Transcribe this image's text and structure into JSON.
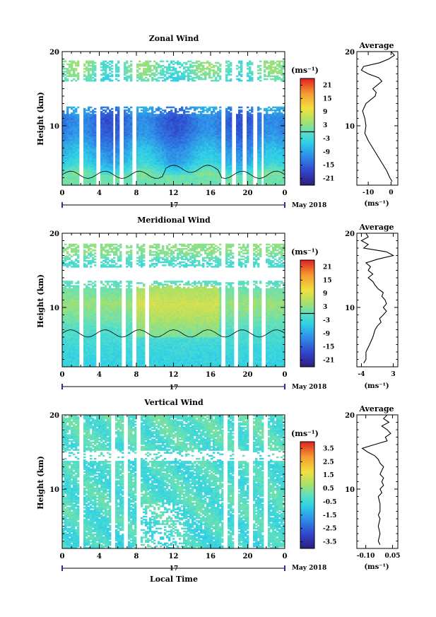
{
  "chart_data": [
    {
      "type": "heatmap",
      "title": "Zonal Wind",
      "ylabel": "Height (km)",
      "ylim": [
        2,
        20
      ],
      "yticks": [
        "10",
        "20"
      ],
      "xticks": [
        "0",
        "4",
        "8",
        "12",
        "16",
        "20",
        "0"
      ],
      "xlim": [
        0,
        24
      ],
      "day_label": "17",
      "date_label": "May 2018",
      "colorbar": {
        "unit_label": "(ms⁻¹)",
        "ticks": [
          "21",
          "15",
          "9",
          "3",
          "-3",
          "-9",
          "-15",
          "-21"
        ],
        "range": [
          -24,
          24
        ],
        "zero_line": true
      },
      "gaps_hours": [
        2.0,
        3.8,
        5.6,
        6.4,
        7.8,
        17.3,
        18.6,
        19.6,
        20.8,
        21.6
      ],
      "field": {
        "type": "zonal",
        "layers": [
          {
            "h": 3.0,
            "v": 2.0
          },
          {
            "h": 5.0,
            "v": -6.0
          },
          {
            "h": 7.0,
            "v": -9.0
          },
          {
            "h": 9.0,
            "v": -13.0
          },
          {
            "h": 11.0,
            "v": -14.0
          },
          {
            "h": 12.5,
            "v": -10.0
          },
          {
            "h": 14.0,
            "v": -4.0
          },
          {
            "h": 16.0,
            "v": -2.0
          },
          {
            "h": 17.5,
            "v": 1.0
          }
        ],
        "coverage_top_km": 12.5,
        "upper_band_km": [
          16.0,
          18.8
        ]
      },
      "profile": {
        "title": "Average",
        "xlabel": "(ms⁻¹)",
        "xticks": [
          "-10",
          "0"
        ],
        "xlim": [
          -15,
          3
        ],
        "ylim": [
          2,
          20
        ],
        "yticks": [
          "10",
          "20"
        ],
        "points": [
          [
            2.5,
            0.5
          ],
          [
            3.0,
            -0.5
          ],
          [
            4.0,
            -2.0
          ],
          [
            5.0,
            -4.0
          ],
          [
            6.0,
            -6.0
          ],
          [
            7.0,
            -8.0
          ],
          [
            8.0,
            -10.0
          ],
          [
            9.0,
            -11.5
          ],
          [
            10.0,
            -11.0
          ],
          [
            11.0,
            -11.5
          ],
          [
            12.0,
            -12.5
          ],
          [
            13.0,
            -11.0
          ],
          [
            13.5,
            -9.0
          ],
          [
            14.0,
            -7.0
          ],
          [
            14.5,
            -6.5
          ],
          [
            15.0,
            -8.0
          ],
          [
            15.5,
            -6.0
          ],
          [
            16.0,
            -4.0
          ],
          [
            16.5,
            -5.5
          ],
          [
            17.0,
            -10.0
          ],
          [
            17.5,
            -13.0
          ],
          [
            18.0,
            -12.0
          ],
          [
            18.5,
            -5.0
          ],
          [
            19.0,
            -1.0
          ],
          [
            19.5,
            1.5
          ],
          [
            20.0,
            0.0
          ]
        ]
      }
    },
    {
      "type": "heatmap",
      "title": "Meridional Wind",
      "ylabel": "Height (km)",
      "ylim": [
        2,
        20
      ],
      "yticks": [
        "10",
        "20"
      ],
      "xticks": [
        "0",
        "4",
        "8",
        "12",
        "16",
        "20",
        "0"
      ],
      "xlim": [
        0,
        24
      ],
      "day_label": "17",
      "date_label": "May 2018",
      "colorbar": {
        "unit_label": "(ms⁻¹)",
        "ticks": [
          "21",
          "15",
          "9",
          "3",
          "-3",
          "-9",
          "-15",
          "-21"
        ],
        "range": [
          -24,
          24
        ],
        "zero_line": true
      },
      "gaps_hours": [
        2.0,
        3.8,
        6.6,
        7.7,
        9.2,
        17.4,
        18.8,
        20.3,
        21.7
      ],
      "field": {
        "type": "meridional",
        "layers": [
          {
            "h": 3.0,
            "v": -4.0
          },
          {
            "h": 5.0,
            "v": -3.0
          },
          {
            "h": 7.0,
            "v": -1.0
          },
          {
            "h": 9.0,
            "v": 2.0
          },
          {
            "h": 10.5,
            "v": 4.0
          },
          {
            "h": 12.5,
            "v": 1.0
          },
          {
            "h": 14.0,
            "v": -1.0
          },
          {
            "h": 16.0,
            "v": -2.0
          },
          {
            "h": 17.5,
            "v": 3.0
          }
        ],
        "coverage_top_km": 13.5,
        "upper_band_km": [
          15.5,
          18.5
        ]
      },
      "profile": {
        "title": "Average",
        "xlabel": "(ms⁻¹)",
        "xticks": [
          "-4",
          "3"
        ],
        "xlim": [
          -5,
          4
        ],
        "ylim": [
          2,
          20
        ],
        "yticks": [
          "10",
          "20"
        ],
        "points": [
          [
            2.5,
            -3.5
          ],
          [
            3.0,
            -3.0
          ],
          [
            4.0,
            -3.0
          ],
          [
            5.0,
            -2.2
          ],
          [
            6.0,
            -1.5
          ],
          [
            7.0,
            -1.0
          ],
          [
            7.5,
            -0.5
          ],
          [
            8.0,
            0.3
          ],
          [
            8.5,
            0.0
          ],
          [
            9.0,
            0.8
          ],
          [
            9.5,
            1.5
          ],
          [
            10.0,
            0.8
          ],
          [
            10.5,
            1.5
          ],
          [
            11.0,
            1.2
          ],
          [
            11.5,
            0.5
          ],
          [
            12.0,
            0.8
          ],
          [
            12.5,
            -0.3
          ],
          [
            13.0,
            -1.0
          ],
          [
            13.5,
            -1.5
          ],
          [
            14.0,
            -2.5
          ],
          [
            14.5,
            -1.5
          ],
          [
            15.0,
            -2.5
          ],
          [
            15.5,
            -2.0
          ],
          [
            16.0,
            -3.0
          ],
          [
            16.5,
            -0.5
          ],
          [
            17.0,
            3.0
          ],
          [
            17.5,
            1.5
          ],
          [
            18.0,
            -3.5
          ],
          [
            18.5,
            -2.5
          ],
          [
            19.0,
            -4.0
          ],
          [
            19.5,
            -2.5
          ],
          [
            20.0,
            -3.0
          ]
        ]
      }
    },
    {
      "type": "heatmap",
      "title": "Vertical Wind",
      "ylabel": "Height (km)",
      "ylim": [
        2,
        20
      ],
      "yticks": [
        "10",
        "20"
      ],
      "xticks": [
        "0",
        "4",
        "8",
        "12",
        "16",
        "20",
        "0"
      ],
      "xlim": [
        0,
        24
      ],
      "day_label": "17",
      "date_label": "May 2018",
      "xlabel": "Local Time",
      "colorbar": {
        "unit_label": "(ms⁻¹)",
        "ticks": [
          "3.5",
          "2.5",
          "1.5",
          "0.5",
          "-0.5",
          "-1.5",
          "-2.5",
          "-3.5"
        ],
        "range": [
          -4,
          4
        ],
        "zero_line": false
      },
      "gaps_hours": [
        2.0,
        5.5,
        6.8,
        8.3,
        17.5,
        18.8,
        20.4,
        21.9
      ],
      "field": {
        "type": "vertical",
        "layers": [
          {
            "h": 3.0,
            "v": -0.4
          },
          {
            "h": 8.0,
            "v": -0.2
          },
          {
            "h": 13.0,
            "v": -0.3
          },
          {
            "h": 18.0,
            "v": -0.1
          }
        ],
        "coverage_top_km": 20.0,
        "upper_band_km": [
          0,
          0
        ]
      },
      "profile": {
        "title": "Average",
        "xlabel": "(ms⁻¹)",
        "xticks": [
          "-0.10",
          "0.05"
        ],
        "xlim": [
          -0.15,
          0.08
        ],
        "ylim": [
          2,
          20
        ],
        "yticks": [
          "10",
          "20"
        ],
        "points": [
          [
            2.5,
            -0.02
          ],
          [
            3.0,
            -0.03
          ],
          [
            4.0,
            -0.02
          ],
          [
            5.0,
            -0.03
          ],
          [
            6.0,
            -0.02
          ],
          [
            6.5,
            -0.03
          ],
          [
            7.0,
            -0.02
          ],
          [
            8.0,
            -0.02
          ],
          [
            9.0,
            -0.03
          ],
          [
            9.5,
            -0.01
          ],
          [
            10.0,
            -0.02
          ],
          [
            10.5,
            0.0
          ],
          [
            11.0,
            -0.01
          ],
          [
            11.5,
            0.0
          ],
          [
            12.0,
            -0.02
          ],
          [
            12.5,
            -0.01
          ],
          [
            13.0,
            0.0
          ],
          [
            13.5,
            -0.02
          ],
          [
            14.0,
            -0.03
          ],
          [
            14.5,
            -0.05
          ],
          [
            15.0,
            -0.09
          ],
          [
            15.5,
            -0.12
          ],
          [
            16.0,
            -0.05
          ],
          [
            16.5,
            0.02
          ],
          [
            17.0,
            0.01
          ],
          [
            17.5,
            0.04
          ],
          [
            18.0,
            0.02
          ],
          [
            18.5,
            -0.01
          ],
          [
            19.0,
            0.03
          ],
          [
            19.5,
            0.0
          ],
          [
            20.0,
            0.02
          ]
        ]
      }
    }
  ]
}
